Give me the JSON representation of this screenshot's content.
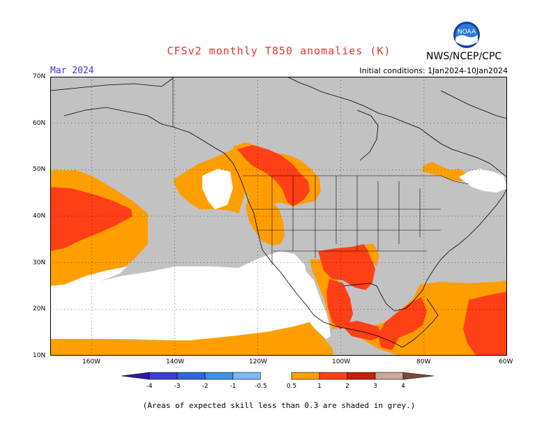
{
  "title": "CFSv2 monthly T850 anomalies (K)",
  "target_month": "Mar 2024",
  "initial_conditions": "Initial conditions: 1Jan2024-10Jan2024",
  "agency": "NWS/NCEP/CPC",
  "logo_text": "NOAA",
  "footnote": "(Areas of expected skill less than 0.3 are shaded in grey.)",
  "lat_ticks": [
    "70N",
    "60N",
    "50N",
    "40N",
    "30N",
    "20N",
    "10N"
  ],
  "lon_ticks": [
    "160W",
    "140W",
    "120W",
    "100W",
    "80W",
    "60W"
  ],
  "colorbar": {
    "labels": [
      "-4",
      "-3",
      "-2",
      "-1",
      "-0.5",
      "0.5",
      "1",
      "2",
      "3",
      "4"
    ],
    "colors": {
      "lt_neg4": "#2b1ba5",
      "neg4_neg3": "#3a3fd0",
      "neg3_neg2": "#2f67d6",
      "neg2_neg1": "#3c93e8",
      "neg1_neg05": "#7ab8f5",
      "neutral": "#ffffff",
      "p05_1": "#ff9e00",
      "p1_2": "#ff3f16",
      "p2_3": "#c81e0a",
      "p3_4": "#c9a898",
      "gt4": "#7a4a3a"
    }
  },
  "colors": {
    "low_skill_grey": "#c2c2c2",
    "title_red": "#e8322a",
    "month_blue": "#3b3bd0"
  }
}
